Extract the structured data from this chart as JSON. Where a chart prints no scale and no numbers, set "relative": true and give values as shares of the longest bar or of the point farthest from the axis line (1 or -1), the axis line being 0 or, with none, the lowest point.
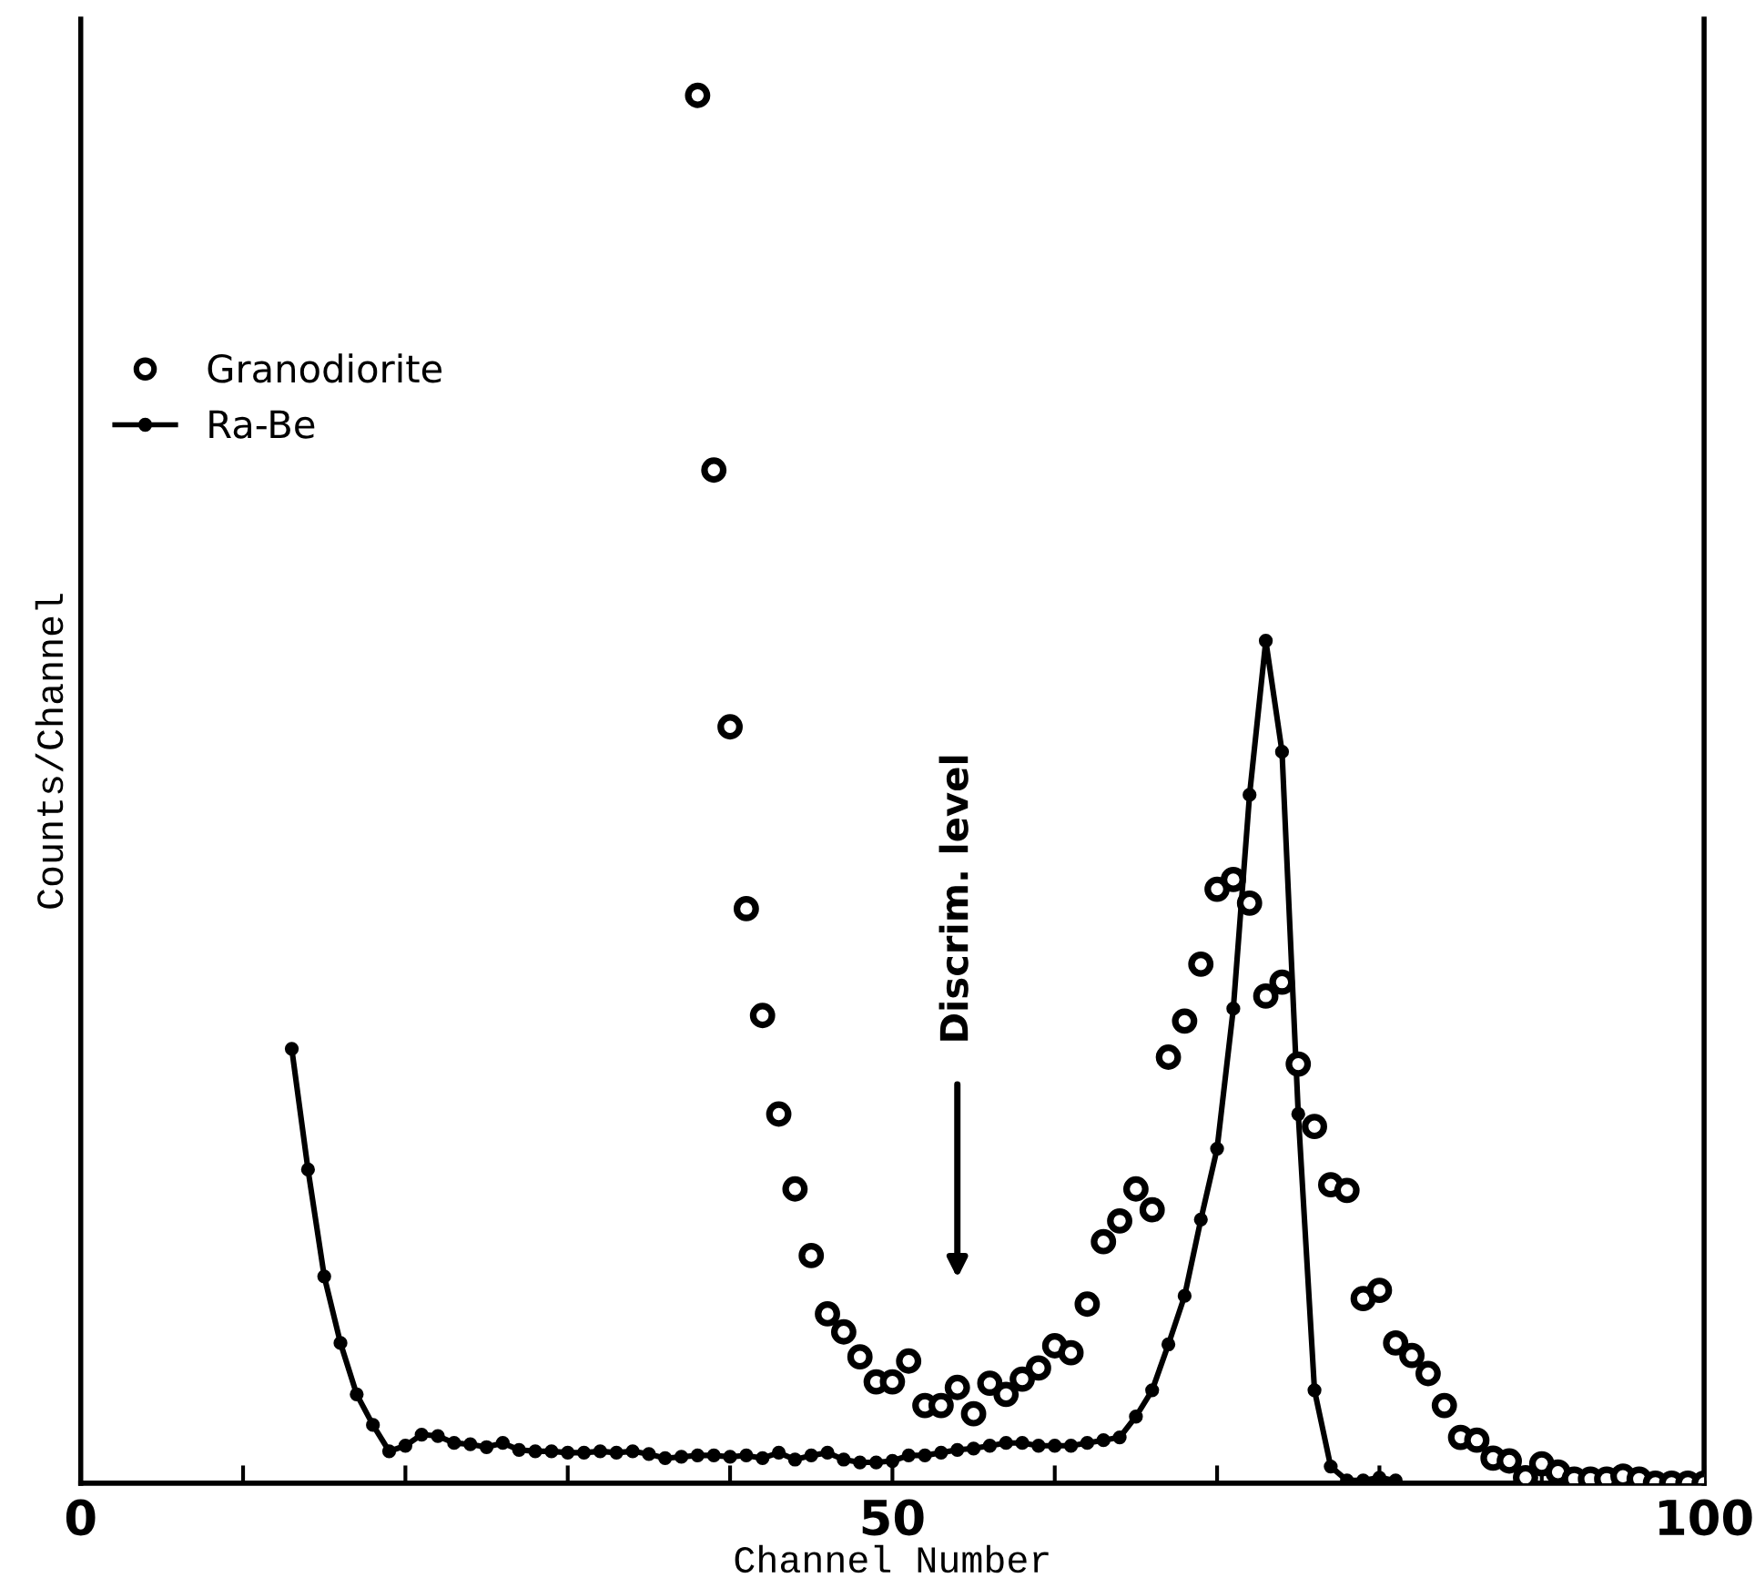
{
  "chart_data": {
    "type": "scatter",
    "xlabel": "Channel Number",
    "ylabel": "Counts/Channel",
    "relative": true,
    "xlim": [
      0,
      100
    ],
    "xticks": [
      0,
      {
        "value": 10,
        "label": null
      },
      {
        "value": 20,
        "label": null
      },
      {
        "value": 30,
        "label": null
      },
      {
        "value": 40,
        "label": null
      },
      50,
      {
        "value": 60,
        "label": null
      },
      {
        "value": 70,
        "label": null
      },
      {
        "value": 80,
        "label": null
      },
      {
        "value": 90,
        "label": null
      },
      100
    ],
    "tick_labels": "x",
    "grid": false,
    "legend": "left",
    "annotations": [
      "Discrim. level"
    ],
    "series": [
      {
        "name": "Granodiorite",
        "marker": "circle",
        "color": "#000000",
        "x": [
          38,
          39,
          40,
          41,
          42,
          43,
          44,
          45,
          46,
          47,
          48,
          49,
          50,
          51,
          52,
          53,
          54,
          55,
          56,
          57,
          58,
          59,
          60,
          61,
          62,
          63,
          64,
          65,
          66,
          67,
          68,
          69,
          70,
          71,
          72,
          73,
          74,
          75,
          76,
          77,
          78,
          79,
          80,
          81,
          82,
          83,
          84,
          85,
          86,
          87,
          88,
          89,
          90,
          91,
          92,
          93,
          94,
          95,
          96,
          97,
          98,
          99,
          100
        ],
        "values": [
          1.0,
          0.73,
          0.545,
          0.414,
          0.337,
          0.266,
          0.212,
          0.164,
          0.122,
          0.109,
          0.091,
          0.073,
          0.073,
          0.088,
          0.056,
          0.056,
          0.069,
          0.05,
          0.072,
          0.064,
          0.075,
          0.083,
          0.099,
          0.094,
          0.129,
          0.174,
          0.189,
          0.212,
          0.197,
          0.307,
          0.333,
          0.374,
          0.428,
          0.435,
          0.418,
          0.351,
          0.361,
          0.302,
          0.257,
          0.215,
          0.211,
          0.133,
          0.139,
          0.101,
          0.092,
          0.079,
          0.056,
          0.033,
          0.031,
          0.018,
          0.016,
          0.004,
          0.014,
          0.008,
          0.003,
          0.003,
          0.003,
          0.005,
          0.003,
          0.0,
          0.0,
          0.0,
          0.0
        ]
      },
      {
        "name": "Ra-Be",
        "type": "line",
        "marker": "circle",
        "line_style": "solid",
        "color": "#000000",
        "x": [
          13,
          14,
          15,
          16,
          17,
          18,
          19,
          20,
          21,
          22,
          23,
          24,
          25,
          26,
          27,
          28,
          29,
          30,
          31,
          32,
          33,
          34,
          35,
          36,
          37,
          38,
          39,
          40,
          41,
          42,
          43,
          44,
          45,
          46,
          47,
          48,
          49,
          50,
          51,
          52,
          53,
          54,
          55,
          56,
          57,
          58,
          59,
          60,
          61,
          62,
          63,
          64,
          65,
          66,
          67,
          68,
          69,
          70,
          71,
          72,
          73,
          74,
          75,
          76,
          77,
          78,
          79,
          80,
          81
        ],
        "values": [
          0.313,
          0.226,
          0.149,
          0.101,
          0.064,
          0.042,
          0.023,
          0.027,
          0.035,
          0.034,
          0.029,
          0.028,
          0.026,
          0.029,
          0.024,
          0.023,
          0.023,
          0.022,
          0.022,
          0.023,
          0.022,
          0.023,
          0.021,
          0.018,
          0.019,
          0.02,
          0.02,
          0.019,
          0.02,
          0.018,
          0.022,
          0.017,
          0.02,
          0.022,
          0.017,
          0.015,
          0.015,
          0.016,
          0.02,
          0.02,
          0.022,
          0.024,
          0.025,
          0.027,
          0.029,
          0.029,
          0.027,
          0.027,
          0.027,
          0.029,
          0.031,
          0.033,
          0.048,
          0.067,
          0.1,
          0.135,
          0.19,
          0.241,
          0.342,
          0.496,
          0.607,
          0.527,
          0.266,
          0.067,
          0.012,
          0.002,
          0.002,
          0.004,
          0.002
        ]
      }
    ]
  }
}
